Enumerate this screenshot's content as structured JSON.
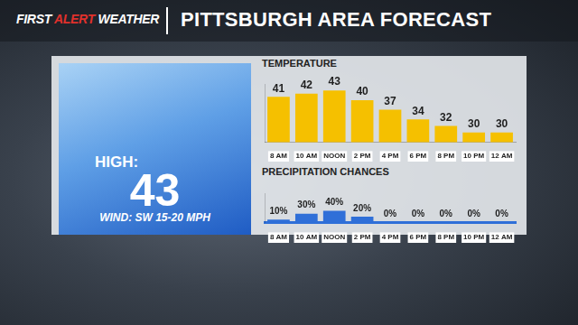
{
  "header": {
    "brand": "FIRST ALERT WEATHER",
    "title": "PITTSBURGH AREA FORECAST"
  },
  "summary": {
    "label": "HIGH:",
    "value": 43,
    "wind": "WIND: SW 15-20 MPH"
  },
  "chart_data": [
    {
      "type": "bar",
      "title": "TEMPERATURE",
      "categories": [
        "8 AM",
        "10 AM",
        "NOON",
        "2 PM",
        "4 PM",
        "6 PM",
        "8 PM",
        "10 PM",
        "12 AM"
      ],
      "values": [
        41,
        42,
        43,
        40,
        37,
        34,
        32,
        30,
        30
      ],
      "color": "#f5c000",
      "ylim": [
        27,
        45
      ],
      "grid": false,
      "data_labels": true,
      "tick_labels": "x"
    },
    {
      "type": "bar",
      "title": "PRECIPITATION CHANCES",
      "categories": [
        "8 AM",
        "10 AM",
        "NOON",
        "2 PM",
        "4 PM",
        "6 PM",
        "8 PM",
        "10 PM",
        "12 AM"
      ],
      "values": [
        10,
        30,
        40,
        20,
        0,
        0,
        0,
        0,
        0
      ],
      "value_labels": [
        "10%",
        "30%",
        "40%",
        "20%",
        "0%",
        "0%",
        "0%",
        "0%",
        "0%"
      ],
      "color": "#2f6fd8",
      "ylim": [
        0,
        100
      ],
      "grid": false,
      "data_labels": true,
      "tick_labels": "x"
    }
  ]
}
